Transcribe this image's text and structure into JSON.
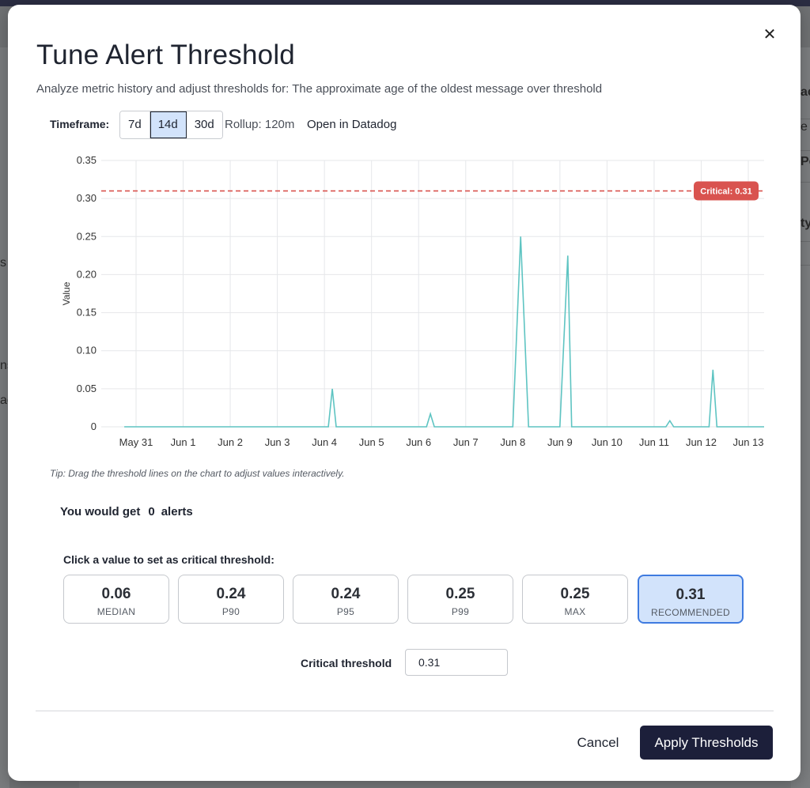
{
  "background": {
    "right_texts": [
      "ac",
      "e",
      "Pe",
      "ty"
    ],
    "left_texts": [
      "s",
      "ns",
      "ac"
    ]
  },
  "modal": {
    "title": "Tune Alert Threshold",
    "subtitle": "Analyze metric history and adjust thresholds for: The approximate age of the oldest message over threshold",
    "close_icon": "close-icon"
  },
  "timeframe": {
    "label": "Timeframe:",
    "options": [
      "7d",
      "14d",
      "30d"
    ],
    "selected": "14d",
    "rollup": "Rollup: 120m",
    "datadog_link": "Open in Datadog"
  },
  "chart_data": {
    "type": "line",
    "ylabel": "Value",
    "xlabel": "",
    "ylim": [
      0,
      0.35
    ],
    "yticks": [
      "0",
      "0.05",
      "0.10",
      "0.15",
      "0.20",
      "0.25",
      "0.30",
      "0.35"
    ],
    "xticks": [
      "May 31",
      "Jun 1",
      "Jun 2",
      "Jun 3",
      "Jun 4",
      "Jun 5",
      "Jun 6",
      "Jun 7",
      "Jun 8",
      "Jun 9",
      "Jun 10",
      "Jun 11",
      "Jun 12",
      "Jun 13"
    ],
    "grid": true,
    "series_color": "#5ec4c2",
    "threshold": {
      "value": 0.31,
      "label": "Critical: 0.31",
      "color": "#d9534f"
    },
    "points": [
      {
        "x": "May 30 18:00",
        "y": 0
      },
      {
        "x": "Jun 4 02:00",
        "y": 0
      },
      {
        "x": "Jun 4 04:00",
        "y": 0.05
      },
      {
        "x": "Jun 4 06:00",
        "y": 0
      },
      {
        "x": "Jun 6 04:00",
        "y": 0
      },
      {
        "x": "Jun 6 06:00",
        "y": 0.017
      },
      {
        "x": "Jun 6 08:00",
        "y": 0
      },
      {
        "x": "Jun 8 00:00",
        "y": 0
      },
      {
        "x": "Jun 8 04:00",
        "y": 0.25
      },
      {
        "x": "Jun 8 08:00",
        "y": 0
      },
      {
        "x": "Jun 9 00:00",
        "y": 0
      },
      {
        "x": "Jun 9 04:00",
        "y": 0.225
      },
      {
        "x": "Jun 9 06:00",
        "y": 0
      },
      {
        "x": "Jun 11 06:00",
        "y": 0
      },
      {
        "x": "Jun 11 08:00",
        "y": 0.008
      },
      {
        "x": "Jun 11 10:00",
        "y": 0
      },
      {
        "x": "Jun 12 04:00",
        "y": 0
      },
      {
        "x": "Jun 12 06:00",
        "y": 0.075
      },
      {
        "x": "Jun 12 08:00",
        "y": 0
      },
      {
        "x": "Jun 13 12:00",
        "y": 0
      }
    ]
  },
  "tip": "Tip: Drag the threshold lines on the chart to adjust values interactively.",
  "alerts": {
    "prefix": "You would get",
    "count": "0",
    "suffix": "alerts"
  },
  "thresholds": {
    "label": "Click a value to set as critical threshold:",
    "stats": [
      {
        "value": "0.06",
        "label": "MEDIAN"
      },
      {
        "value": "0.24",
        "label": "P90"
      },
      {
        "value": "0.24",
        "label": "P95"
      },
      {
        "value": "0.25",
        "label": "P99"
      },
      {
        "value": "0.25",
        "label": "MAX"
      },
      {
        "value": "0.31",
        "label": "RECOMMENDED",
        "selected": true
      }
    ],
    "critical_label": "Critical threshold",
    "critical_value": "0.31"
  },
  "footer": {
    "cancel": "Cancel",
    "apply": "Apply Thresholds"
  },
  "colors": {
    "accent": "#3f7be0",
    "selected_bg": "#d2e3fb",
    "primary_button": "#1c1f3a"
  }
}
